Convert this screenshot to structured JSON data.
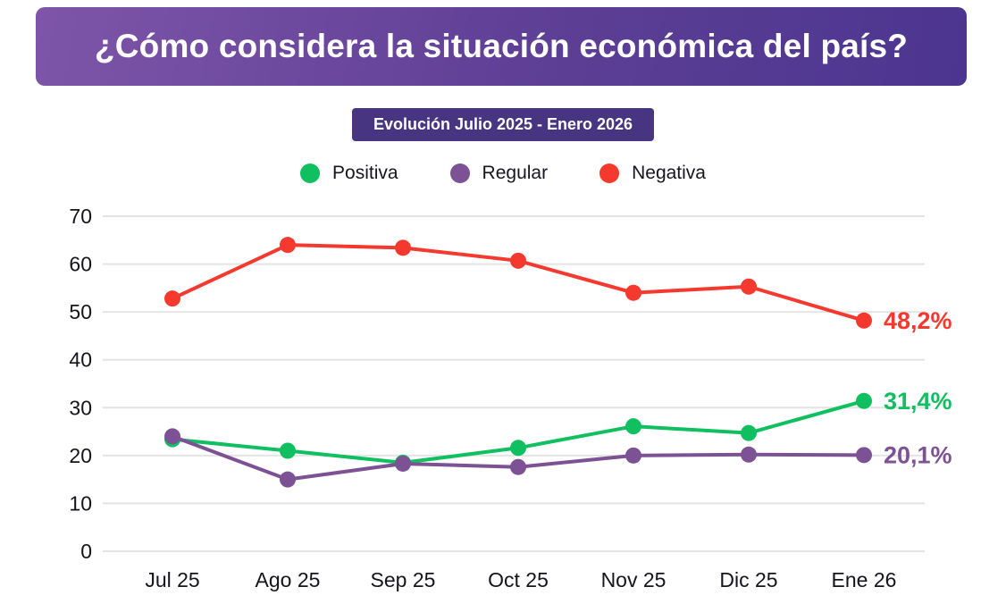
{
  "header": {
    "title": "¿Cómo considera la situación económica del país?"
  },
  "subtitle": {
    "label": "Evolución Julio 2025 - Enero 2026"
  },
  "legend": {
    "items": [
      {
        "label": "Positiva",
        "color": "#10bf5f"
      },
      {
        "label": "Regular",
        "color": "#7c5295"
      },
      {
        "label": "Negativa",
        "color": "#f5392e"
      }
    ]
  },
  "chart_data": {
    "type": "line",
    "title": "¿Cómo considera la situación económica del país?",
    "subtitle": "Evolución Julio 2025 - Enero 2026",
    "categories": [
      "Jul 25",
      "Ago 25",
      "Sep 25",
      "Oct 25",
      "Nov 25",
      "Dic 25",
      "Ene 26"
    ],
    "series": [
      {
        "name": "Positiva",
        "color": "#10bf5f",
        "values": [
          23.4,
          21.0,
          18.5,
          21.6,
          26.1,
          24.7,
          31.4
        ],
        "end_label": "31,4%"
      },
      {
        "name": "Regular",
        "color": "#7c5295",
        "values": [
          24.0,
          15.0,
          18.3,
          17.6,
          20.0,
          20.2,
          20.1
        ],
        "end_label": "20,1%"
      },
      {
        "name": "Negativa",
        "color": "#f5392e",
        "values": [
          52.8,
          64.0,
          63.4,
          60.7,
          54.0,
          55.3,
          48.2
        ],
        "end_label": "48,2%"
      }
    ],
    "xlabel": "",
    "ylabel": "",
    "ylim": [
      0,
      70
    ],
    "yticks": [
      0,
      10,
      20,
      30,
      40,
      50,
      60,
      70
    ],
    "grid": true,
    "legend_position": "top",
    "grid_color": "#e4e4e4",
    "tick_label_color": "#14141c"
  }
}
